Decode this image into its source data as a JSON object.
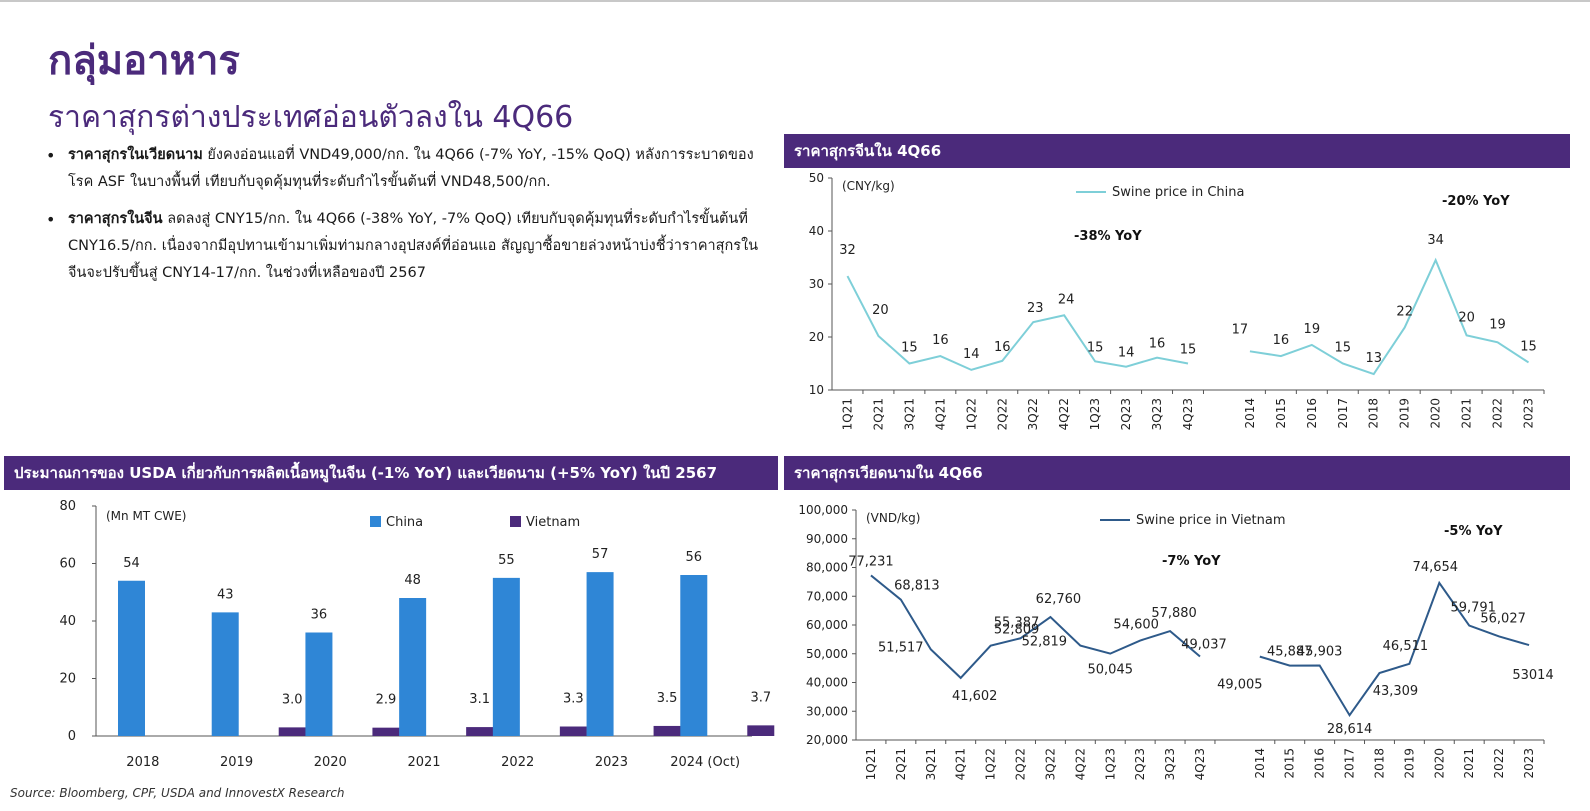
{
  "page": {
    "title": "กลุ่มอาหาร",
    "subtitle": "ราคาสุกรต่างประเทศอ่อนตัวลงใน 4Q66",
    "bullets": [
      {
        "bold": "ราคาสุกรในเวียดนาม",
        "text": " ยังคงอ่อนแอที่ VND49,000/กก. ใน 4Q66 (-7% YoY, -15% QoQ) หลังการระบาดของโรค ASF ในบางพื้นที่ เทียบกับจุดคุ้มทุนที่ระดับกำไรขั้นต้นที่ VND48,500/กก."
      },
      {
        "bold": "ราคาสุกรในจีน",
        "text": " ลดลงสู่ CNY15/กก. ใน 4Q66 (-38% YoY, -7% QoQ) เทียบกับจุดคุ้มทุนที่ระดับกำไรขั้นต้นที่ CNY16.5/กก. เนื่องจากมีอุปทานเข้ามาเพิ่มท่ามกลางอุปสงค์ที่อ่อนแอ สัญญาซื้อขายล่วงหน้าบ่งชี้ว่าราคาสุกรในจีนจะปรับขึ้นสู่ CNY14-17/กก. ในช่วงที่เหลือของปี 2567"
      }
    ],
    "source": "Source: Bloomberg, CPF, USDA and InnovestX Research"
  },
  "panels": {
    "china": "ราคาสุกรจีนใน 4Q66",
    "usda": "ประมาณการของ USDA เกี่ยวกับการผลิตเนื้อหมูในจีน (-1% YoY) และเวียดนาม (+5% YoY) ในปี 2567",
    "vietnam": "ราคาสุกรเวียดนามใน 4Q66"
  },
  "chart_data": [
    {
      "id": "china",
      "type": "line",
      "unit": "(CNY/kg)",
      "ylim": [
        10,
        50
      ],
      "yticks": [
        10,
        20,
        30,
        40,
        50
      ],
      "color": "#7ecfd8",
      "series_name": "Swine price in China",
      "annotations": [
        "-38% YoY",
        "-20% YoY"
      ],
      "segments": [
        {
          "x": [
            "1Q21",
            "2Q21",
            "3Q21",
            "4Q21",
            "1Q22",
            "2Q22",
            "3Q22",
            "4Q22",
            "1Q23",
            "2Q23",
            "3Q23",
            "4Q23"
          ],
          "y": [
            31.5,
            20.2,
            15.0,
            16.4,
            13.8,
            15.5,
            22.8,
            24.1,
            15.4,
            14.4,
            16.1,
            15.0
          ],
          "labels": [
            "32",
            "20",
            "15",
            "16",
            "14",
            "16",
            "23",
            "24",
            "15",
            "14",
            "16",
            "15"
          ]
        },
        {
          "x": [
            "2014",
            "2015",
            "2016",
            "2017",
            "2018",
            "2019",
            "2020",
            "2021",
            "2022",
            "2023"
          ],
          "y": [
            17.3,
            16.4,
            18.5,
            15.0,
            13.0,
            21.8,
            34.5,
            20.3,
            19.0,
            15.2
          ],
          "labels": [
            "17",
            "16",
            "19",
            "15",
            "13",
            "22",
            "34",
            "20",
            "19",
            "15"
          ]
        }
      ]
    },
    {
      "id": "usda",
      "type": "bar",
      "unit": "(Mn MT CWE)",
      "ylim": [
        0,
        80
      ],
      "yticks": [
        0,
        20,
        40,
        60,
        80
      ],
      "categories": [
        "2018",
        "2019",
        "2020",
        "2021",
        "2022",
        "2023",
        "2024 (Oct)"
      ],
      "series": [
        {
          "name": "China",
          "color": "#2f86d6",
          "values": [
            54,
            43,
            36,
            48,
            55,
            57,
            56
          ],
          "labels": [
            "54",
            "43",
            "36",
            "48",
            "55",
            "57",
            "56"
          ]
        },
        {
          "name": "Vietnam",
          "color": "#4b2a7b",
          "values": [
            null,
            3.0,
            2.9,
            3.1,
            3.3,
            3.5,
            3.7
          ],
          "labels": [
            "",
            "3.0",
            "2.9",
            "3.1",
            "3.3",
            "3.5",
            "3.7"
          ]
        }
      ]
    },
    {
      "id": "vietnam",
      "type": "line",
      "unit": "(VND/kg)",
      "ylim": [
        20000,
        100000
      ],
      "yticks": [
        20000,
        30000,
        40000,
        50000,
        60000,
        70000,
        80000,
        90000,
        100000
      ],
      "ytick_labels": [
        "20,000",
        "30,000",
        "40,000",
        "50,000",
        "60,000",
        "70,000",
        "80,000",
        "90,000",
        "100,000"
      ],
      "color": "#2e5a8a",
      "series_name": "Swine price in Vietnam",
      "annotations": [
        "-7% YoY",
        "-5% YoY"
      ],
      "segments": [
        {
          "x": [
            "1Q21",
            "2Q21",
            "3Q21",
            "4Q21",
            "1Q22",
            "2Q22",
            "3Q22",
            "4Q22",
            "1Q23",
            "2Q23",
            "3Q23",
            "4Q23"
          ],
          "y": [
            77231,
            68813,
            51517,
            41602,
            52809,
            55387,
            62760,
            52819,
            50045,
            54600,
            57880,
            49037
          ],
          "labels": [
            "77,231",
            "68,813",
            "51,517",
            "41,602",
            "52,809",
            "55,387",
            "62,760",
            "52,819",
            "50,045",
            "54,600",
            "57,880",
            "49,037"
          ]
        },
        {
          "x": [
            "2014",
            "2015",
            "2016",
            "2017",
            "2018",
            "2019",
            "2020",
            "2021",
            "2022",
            "2023"
          ],
          "y": [
            49005,
            45887,
            45903,
            28614,
            43309,
            46511,
            74654,
            59791,
            56027,
            53014
          ],
          "labels": [
            "49,005",
            "45,887",
            "45,903",
            "28,614",
            "43,309",
            "46,511",
            "74,654",
            "59,791",
            "56,027",
            "53014"
          ]
        }
      ]
    }
  ]
}
